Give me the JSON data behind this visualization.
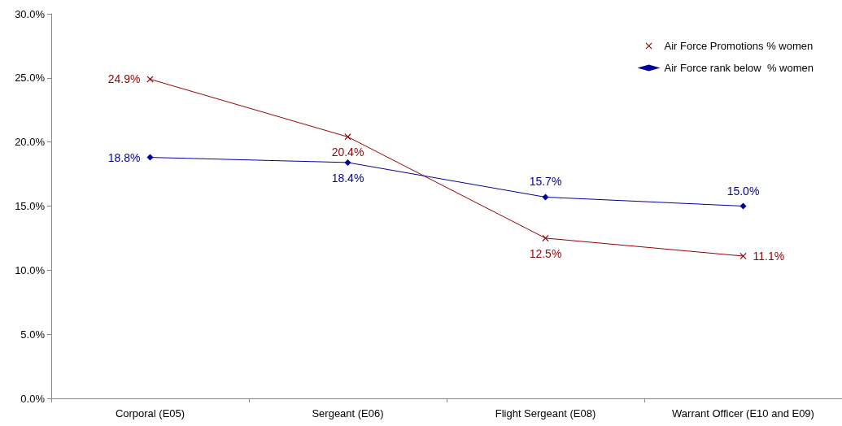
{
  "chart_data": {
    "type": "line",
    "categories": [
      "Corporal (E05)",
      "Sergeant (E06)",
      "Flight Sergeant (E08)",
      "Warrant Officer (E10 and E09)"
    ],
    "series": [
      {
        "name": "Air Force Promotions % women",
        "color": "#990000",
        "marker": "cross",
        "values": [
          24.9,
          20.4,
          12.5,
          11.1
        ],
        "value_labels": [
          "24.9%",
          "20.4%",
          "12.5%",
          "11.1%"
        ]
      },
      {
        "name": "Air Force rank below  % women",
        "color": "#000099",
        "marker": "diamond",
        "values": [
          18.8,
          18.4,
          15.7,
          15.0
        ],
        "value_labels": [
          "18.8%",
          "18.4%",
          "15.7%",
          "15.0%"
        ]
      }
    ],
    "ylim": [
      0,
      30
    ],
    "yticks": [
      {
        "value": 0,
        "label": "0.0%"
      },
      {
        "value": 5,
        "label": "5.0%"
      },
      {
        "value": 10,
        "label": "10.0%"
      },
      {
        "value": 15,
        "label": "15.0%"
      },
      {
        "value": 20,
        "label": "20.0%"
      },
      {
        "value": 25,
        "label": "25.0%"
      },
      {
        "value": 30,
        "label": "30.0%"
      }
    ],
    "grid": false,
    "legend": "top right"
  }
}
